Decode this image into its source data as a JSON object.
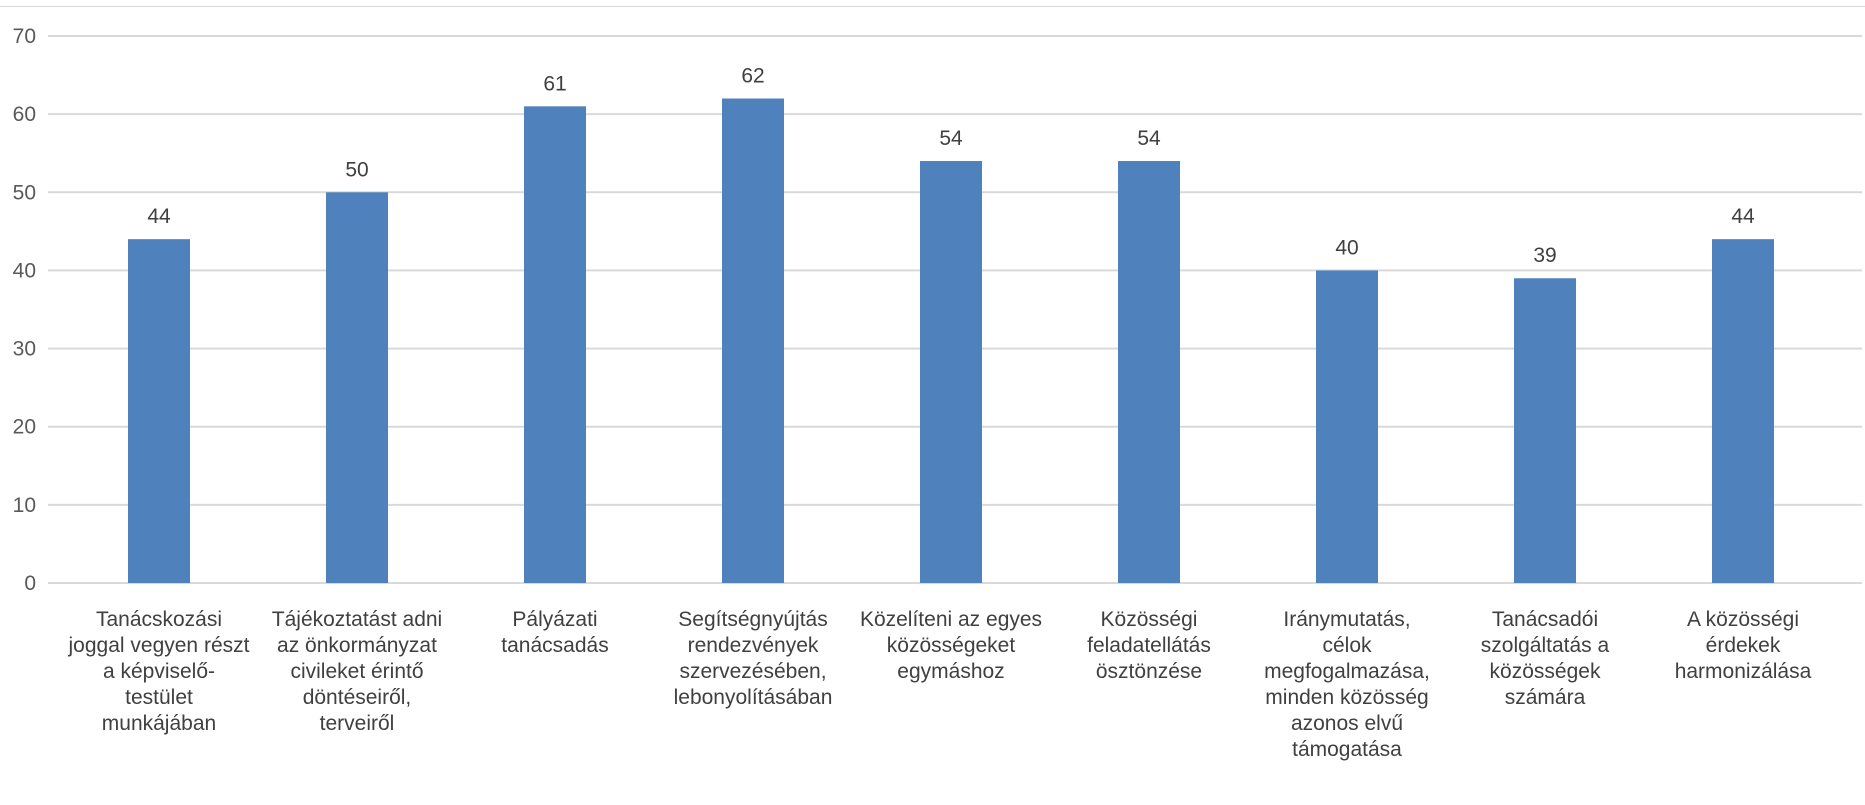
{
  "chart_data": {
    "type": "bar",
    "title": "",
    "xlabel": "",
    "ylabel": "",
    "ylim": [
      0,
      70
    ],
    "yticks": [
      0,
      10,
      20,
      30,
      40,
      50,
      60,
      70
    ],
    "grid": true,
    "legend": "none",
    "bar_color": "#4f81bd",
    "categories": [
      [
        "Tanácskozási",
        "joggal vegyen részt",
        "a képviselő-",
        "testület",
        "munkájában"
      ],
      [
        "Tájékoztatást adni",
        "az önkormányzat",
        "civileket érintő",
        "döntéseiről,",
        "terveiről"
      ],
      [
        "Pályázati",
        "tanácsadás"
      ],
      [
        "Segítségnyújtás",
        "rendezvények",
        "szervezésében,",
        "lebonyolításában"
      ],
      [
        "Közelíteni az egyes",
        "közösségeket",
        "egymáshoz"
      ],
      [
        "Közösségi",
        "feladatellátás",
        "ösztönzése"
      ],
      [
        "Iránymutatás,",
        "célok",
        "megfogalmazása,",
        "minden közösség",
        "azonos elvű",
        "támogatása"
      ],
      [
        "Tanácsadói",
        "szolgáltatás a",
        "közösségek",
        "számára"
      ],
      [
        "A közösségi",
        "érdekek",
        "harmonizálása"
      ]
    ],
    "values": [
      44,
      50,
      61,
      62,
      54,
      54,
      40,
      39,
      44
    ]
  }
}
